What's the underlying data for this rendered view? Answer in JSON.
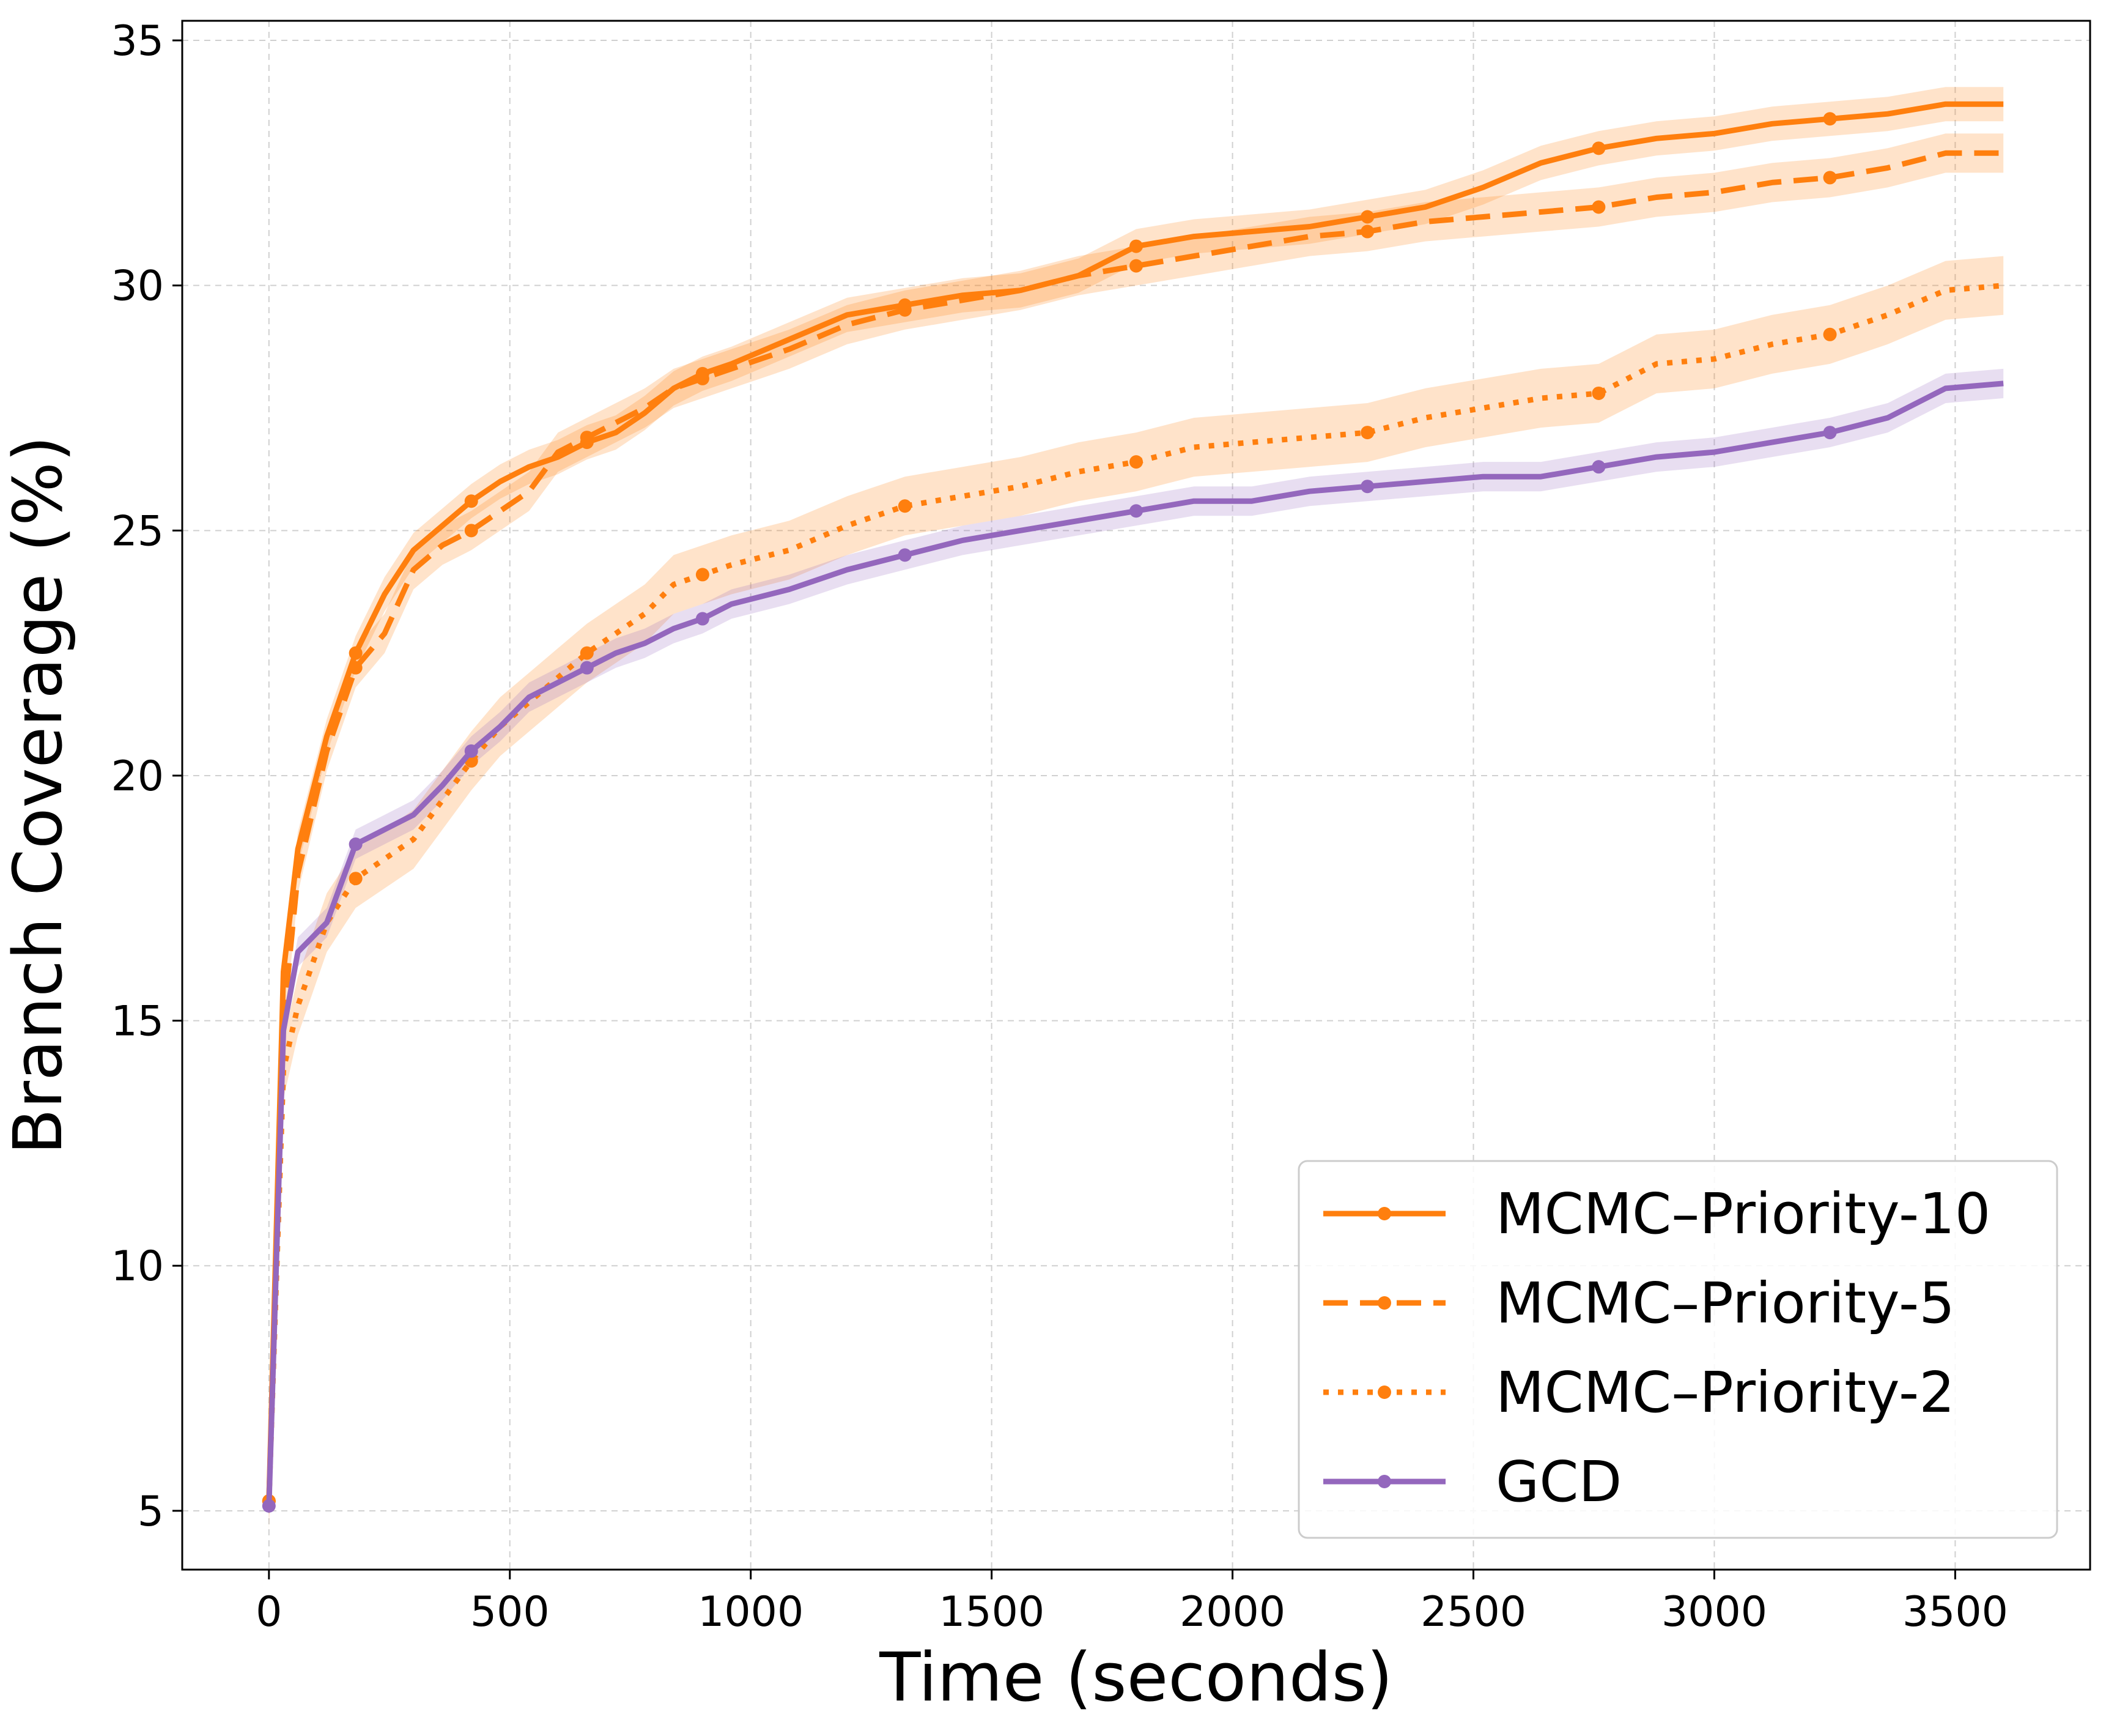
{
  "chart_data": {
    "type": "line",
    "xlabel": "Time (seconds)",
    "ylabel": "Branch Coverage (%)",
    "xlim": [
      -180,
      3780
    ],
    "ylim": [
      3.8,
      35.4
    ],
    "xticks": [
      0,
      500,
      1000,
      1500,
      2000,
      2500,
      3000,
      3500
    ],
    "yticks": [
      5,
      10,
      15,
      20,
      25,
      30,
      35
    ],
    "grid": true,
    "legend_position": "bottom-right",
    "series": [
      {
        "name": "MCMC–Priority-10",
        "color": "#ff7f0e",
        "style": "solid",
        "band": 0.35,
        "x": [
          0,
          30,
          60,
          120,
          180,
          240,
          300,
          360,
          420,
          480,
          540,
          600,
          660,
          720,
          780,
          840,
          900,
          960,
          1080,
          1200,
          1320,
          1440,
          1560,
          1680,
          1800,
          1920,
          2040,
          2160,
          2280,
          2400,
          2520,
          2640,
          2760,
          2880,
          3000,
          3120,
          3240,
          3360,
          3480,
          3600
        ],
        "y": [
          5.2,
          16.0,
          18.5,
          20.8,
          22.5,
          23.7,
          24.6,
          25.1,
          25.6,
          26.0,
          26.3,
          26.5,
          26.8,
          27.0,
          27.4,
          27.9,
          28.2,
          28.4,
          28.9,
          29.4,
          29.6,
          29.8,
          29.9,
          30.2,
          30.8,
          31.0,
          31.1,
          31.2,
          31.4,
          31.6,
          32.0,
          32.5,
          32.8,
          33.0,
          33.1,
          33.3,
          33.4,
          33.5,
          33.7,
          33.7
        ]
      },
      {
        "name": "MCMC–Priority-5",
        "color": "#ff7f0e",
        "style": "dashed",
        "band": 0.4,
        "x": [
          0,
          30,
          60,
          120,
          180,
          240,
          300,
          360,
          420,
          480,
          540,
          600,
          660,
          720,
          780,
          840,
          900,
          960,
          1080,
          1200,
          1320,
          1440,
          1560,
          1680,
          1800,
          1920,
          2040,
          2160,
          2280,
          2400,
          2520,
          2640,
          2760,
          2880,
          3000,
          3120,
          3240,
          3360,
          3480,
          3600
        ],
        "y": [
          5.2,
          15.0,
          18.0,
          20.5,
          22.2,
          22.9,
          24.2,
          24.7,
          25.0,
          25.4,
          25.8,
          26.6,
          26.9,
          27.2,
          27.5,
          27.9,
          28.1,
          28.3,
          28.7,
          29.2,
          29.5,
          29.7,
          29.9,
          30.2,
          30.4,
          30.6,
          30.8,
          31.0,
          31.1,
          31.3,
          31.4,
          31.5,
          31.6,
          31.8,
          31.9,
          32.1,
          32.2,
          32.4,
          32.7,
          32.7
        ]
      },
      {
        "name": "MCMC–Priority-2",
        "color": "#ff7f0e",
        "style": "dotted",
        "band": 0.6,
        "x": [
          0,
          30,
          60,
          120,
          180,
          240,
          300,
          360,
          420,
          480,
          540,
          600,
          660,
          720,
          780,
          840,
          900,
          960,
          1080,
          1200,
          1320,
          1440,
          1560,
          1680,
          1800,
          1920,
          2040,
          2160,
          2280,
          2400,
          2520,
          2640,
          2760,
          2880,
          3000,
          3120,
          3240,
          3360,
          3480,
          3600
        ],
        "y": [
          5.2,
          14.0,
          15.3,
          17.0,
          17.9,
          18.3,
          18.7,
          19.5,
          20.3,
          21.0,
          21.5,
          22.0,
          22.5,
          22.9,
          23.3,
          23.9,
          24.1,
          24.3,
          24.6,
          25.1,
          25.5,
          25.7,
          25.9,
          26.2,
          26.4,
          26.7,
          26.8,
          26.9,
          27.0,
          27.3,
          27.5,
          27.7,
          27.8,
          28.4,
          28.5,
          28.8,
          29.0,
          29.4,
          29.9,
          30.0
        ]
      },
      {
        "name": "GCD",
        "color": "#9467bd",
        "style": "solid",
        "band": 0.3,
        "x": [
          0,
          30,
          60,
          120,
          180,
          240,
          300,
          360,
          420,
          480,
          540,
          600,
          660,
          720,
          780,
          840,
          900,
          960,
          1080,
          1200,
          1320,
          1440,
          1560,
          1680,
          1800,
          1920,
          2040,
          2160,
          2280,
          2400,
          2520,
          2640,
          2760,
          2880,
          3000,
          3120,
          3240,
          3360,
          3480,
          3600
        ],
        "y": [
          5.1,
          14.8,
          16.4,
          17.0,
          18.6,
          18.9,
          19.2,
          19.8,
          20.5,
          21.0,
          21.6,
          21.9,
          22.2,
          22.5,
          22.7,
          23.0,
          23.2,
          23.5,
          23.8,
          24.2,
          24.5,
          24.8,
          25.0,
          25.2,
          25.4,
          25.6,
          25.6,
          25.8,
          25.9,
          26.0,
          26.1,
          26.1,
          26.3,
          26.5,
          26.6,
          26.8,
          27.0,
          27.3,
          27.9,
          28.0
        ]
      }
    ]
  }
}
